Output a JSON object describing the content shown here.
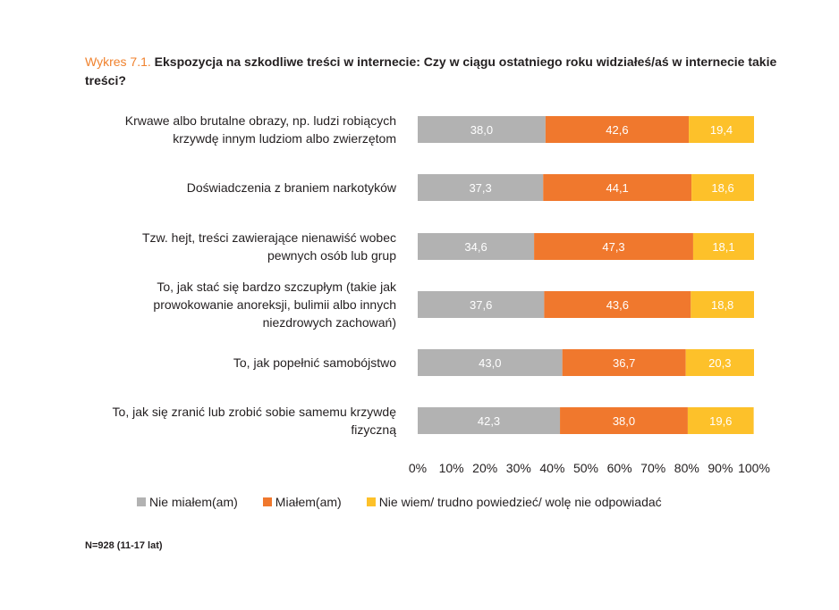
{
  "title": {
    "prefix": "Wykres 7.1.",
    "text": "Ekspozycja na szkodliwe treści w internecie: Czy w ciągu ostatniego roku widziałeś/aś w internecie takie treści?"
  },
  "note": "N=928 (11-17 lat)",
  "chart_data": {
    "type": "bar",
    "orientation": "horizontal",
    "stacked": true,
    "percent": true,
    "categories": [
      [
        "Krwawe albo brutalne obrazy, np. ludzi robiących",
        "krzywdę innym ludziom albo zwierzętom"
      ],
      [
        "Doświadczenia z braniem narkotyków"
      ],
      [
        "Tzw. hejt, treści zawierające nienawiść wobec",
        "pewnych osób lub grup"
      ],
      [
        "To, jak stać się bardzo szczupłym (takie jak",
        "prowokowanie anoreksji, bulimii albo  innych",
        "niezdrowych zachowań)"
      ],
      [
        "To, jak popełnić samobójstwo"
      ],
      [
        "To, jak się zranić lub zrobić sobie samemu krzywdę",
        "fizyczną"
      ]
    ],
    "series": [
      {
        "name": "Nie miałem(am)",
        "color": "#b2b2b2",
        "values": [
          38.0,
          37.3,
          34.6,
          37.6,
          43.0,
          42.3
        ],
        "labels": [
          "38,0",
          "37,3",
          "34,6",
          "37,6",
          "43,0",
          "42,3"
        ]
      },
      {
        "name": "Miałem(am)",
        "color": "#f0782d",
        "values": [
          42.6,
          44.1,
          47.3,
          43.6,
          36.7,
          38.0
        ],
        "labels": [
          "42,6",
          "44,1",
          "47,3",
          "43,6",
          "36,7",
          "38,0"
        ]
      },
      {
        "name": "Nie wiem/ trudno powiedzieć/ wolę nie odpowiadać",
        "color": "#fdc12a",
        "values": [
          19.4,
          18.6,
          18.1,
          18.8,
          20.3,
          19.6
        ],
        "labels": [
          "19,4",
          "18,6",
          "18,1",
          "18,8",
          "20,3",
          "19,6"
        ]
      }
    ],
    "xticks": [
      "0%",
      "10%",
      "20%",
      "30%",
      "40%",
      "50%",
      "60%",
      "70%",
      "80%",
      "90%",
      "100%"
    ],
    "xlim": [
      0,
      100
    ],
    "grid": false,
    "legend_position": "bottom"
  }
}
